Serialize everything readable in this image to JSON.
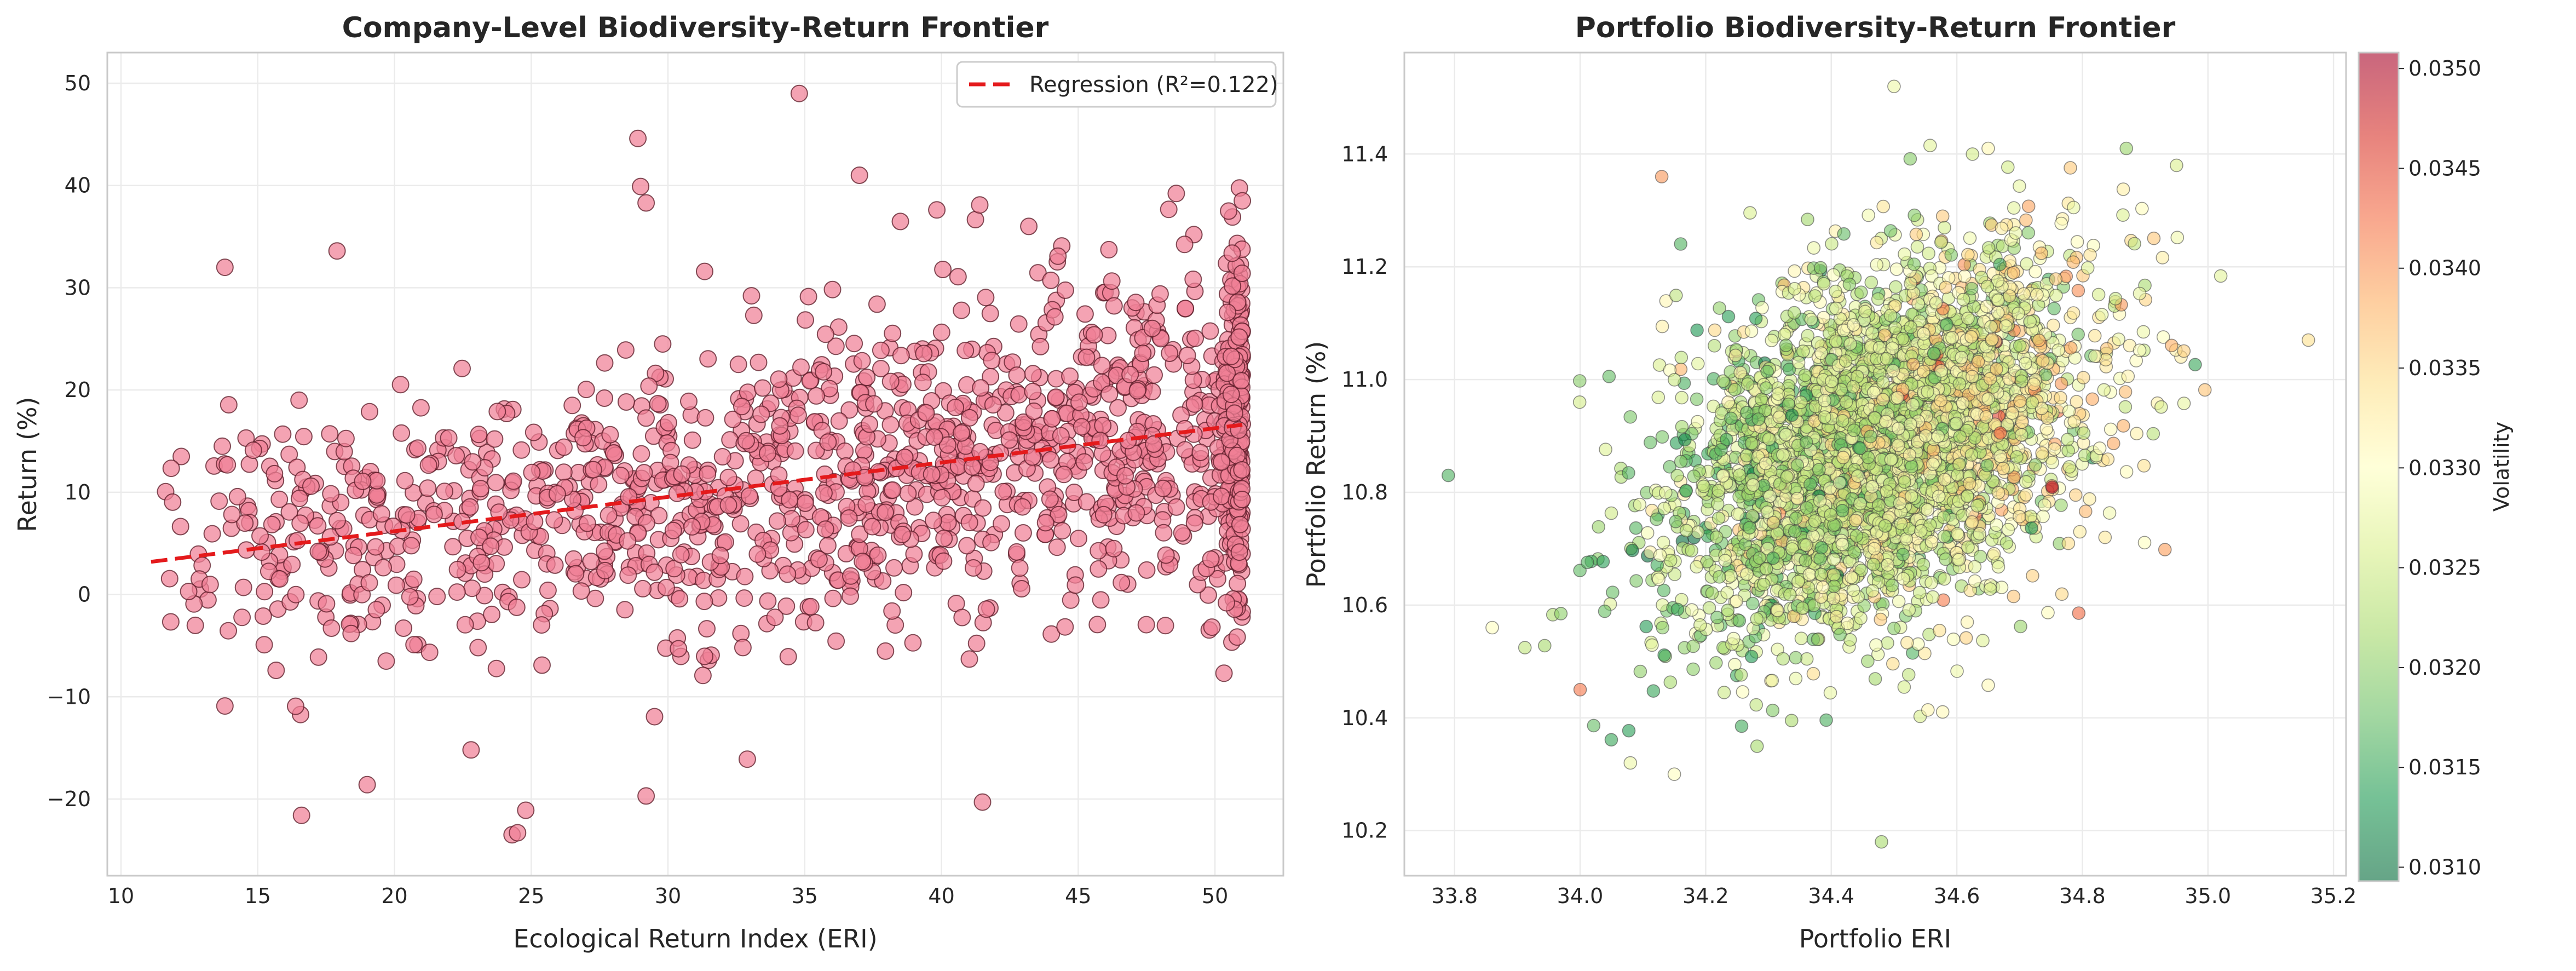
{
  "colors": {
    "point_fill": "#f07f95",
    "point_edge": "#5a1a26",
    "regression_line": "#e41a1c",
    "grid": "#ebebeb",
    "frame": "#c9c9c9",
    "colormap": [
      "#006837",
      "#1a9850",
      "#66bd63",
      "#a6d96a",
      "#d9ef8b",
      "#ffffbf",
      "#fee08b",
      "#fdae61",
      "#f46d43",
      "#d73027",
      "#a50026"
    ]
  },
  "chart_data": [
    {
      "type": "scatter",
      "title": "Company-Level Biodiversity-Return Frontier",
      "xlabel": "Ecological Return Index (ERI)",
      "ylabel": "Return (%)",
      "xlim": [
        9.5,
        52.5
      ],
      "ylim": [
        -27.5,
        53
      ],
      "xticks": [
        "10",
        "15",
        "20",
        "25",
        "30",
        "35",
        "40",
        "45",
        "50"
      ],
      "yticks": [
        "−20",
        "−10",
        "0",
        "10",
        "20",
        "30",
        "40",
        "50"
      ],
      "grid": true,
      "legend_position": "top-right",
      "regression": {
        "label": "Regression (R²=0.122)",
        "x": [
          11.1,
          51.0
        ],
        "y": [
          3.2,
          16.6
        ]
      },
      "outliers": [
        {
          "x": 34.8,
          "y": 49.0
        },
        {
          "x": 28.9,
          "y": 44.6
        },
        {
          "x": 29.0,
          "y": 39.9
        },
        {
          "x": 29.2,
          "y": 38.3
        },
        {
          "x": 37.0,
          "y": 41.0
        },
        {
          "x": 13.8,
          "y": 32.0
        },
        {
          "x": 17.9,
          "y": 33.6
        },
        {
          "x": 24.3,
          "y": -23.5
        },
        {
          "x": 24.5,
          "y": -23.3
        },
        {
          "x": 16.6,
          "y": -21.6
        },
        {
          "x": 41.5,
          "y": -20.3
        },
        {
          "x": 29.2,
          "y": -19.7
        },
        {
          "x": 24.8,
          "y": -21.1
        },
        {
          "x": 19.0,
          "y": -18.6
        },
        {
          "x": 32.9,
          "y": -16.1
        },
        {
          "x": 22.8,
          "y": -15.2
        },
        {
          "x": 13.8,
          "y": -10.9
        },
        {
          "x": 51.0,
          "y": 38.5
        },
        {
          "x": 50.5,
          "y": 37.5
        },
        {
          "x": 41.4,
          "y": 38.1
        }
      ],
      "sampling": {
        "seed": 11,
        "count": 1500,
        "x_min": 11.0,
        "x_max": 51.0,
        "slope": 0.335,
        "intercept": -0.5,
        "spread_base": 5.0,
        "spread_slope": 0.09,
        "edge_cluster_fraction": 0.15
      }
    },
    {
      "type": "scatter",
      "title": "Portfolio Biodiversity-Return Frontier",
      "xlabel": "Portfolio ERI",
      "ylabel": "Portfolio Return (%)",
      "xlim": [
        33.72,
        35.22
      ],
      "ylim": [
        10.12,
        11.58
      ],
      "xticks": [
        "33.8",
        "34.0",
        "34.2",
        "34.4",
        "34.6",
        "34.8",
        "35.0",
        "35.2"
      ],
      "yticks": [
        "10.2",
        "10.4",
        "10.6",
        "10.8",
        "11.0",
        "11.2",
        "11.4"
      ],
      "grid": true,
      "colorbar": {
        "label": "Volatility",
        "min": 0.03093,
        "max": 0.03508,
        "ticks": [
          "0.0310",
          "0.0315",
          "0.0320",
          "0.0325",
          "0.0330",
          "0.0335",
          "0.0340",
          "0.0345",
          "0.0350"
        ]
      },
      "outliers": [
        {
          "x": 33.79,
          "y": 10.83,
          "v": 0.0316
        },
        {
          "x": 34.5,
          "y": 11.52,
          "v": 0.0328
        },
        {
          "x": 34.48,
          "y": 10.18,
          "v": 0.0322
        },
        {
          "x": 35.16,
          "y": 11.07,
          "v": 0.0334
        },
        {
          "x": 34.13,
          "y": 11.36,
          "v": 0.034
        },
        {
          "x": 34.0,
          "y": 10.45,
          "v": 0.0342
        },
        {
          "x": 34.08,
          "y": 10.32,
          "v": 0.0328
        },
        {
          "x": 34.15,
          "y": 10.3,
          "v": 0.033
        },
        {
          "x": 34.87,
          "y": 11.41,
          "v": 0.0321
        },
        {
          "x": 34.95,
          "y": 11.38,
          "v": 0.0326
        },
        {
          "x": 34.65,
          "y": 11.41,
          "v": 0.0331
        },
        {
          "x": 33.86,
          "y": 10.56,
          "v": 0.033
        }
      ],
      "sampling": {
        "seed": 29,
        "count": 3800,
        "x_center": 34.48,
        "x_sd": 0.16,
        "y_center": 10.88,
        "y_sd": 0.16,
        "correlation": 0.38,
        "v_center": 0.03265,
        "v_sd": 0.00055
      }
    }
  ]
}
